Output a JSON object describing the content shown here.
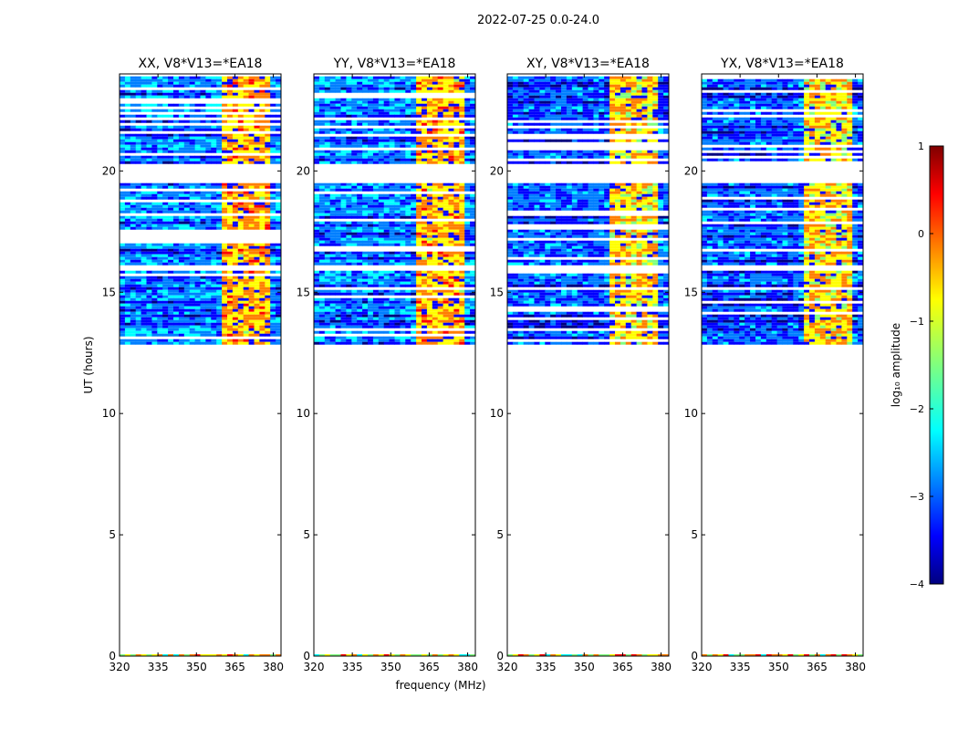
{
  "figure": {
    "suptitle": "2022-07-25 0.0-24.0",
    "ylabel": "UT (hours)",
    "xlabel": "frequency (MHz)"
  },
  "chart_data": {
    "type": "heatmap",
    "x": {
      "label": "frequency (MHz)",
      "range": [
        320,
        383
      ],
      "ticks": [
        320,
        335,
        350,
        365,
        380
      ],
      "tick_labels": [
        "320",
        "335",
        "350",
        "365",
        "380"
      ]
    },
    "y": {
      "label": "UT (hours)",
      "range": [
        0,
        24
      ],
      "ticks": [
        0,
        5,
        10,
        15,
        20
      ],
      "tick_labels": [
        "0",
        "5",
        "10",
        "15",
        "20"
      ]
    },
    "panels": [
      {
        "title": "XX, V8*V13=*EA18",
        "pol": "XX"
      },
      {
        "title": "YY, V8*V13=*EA18",
        "pol": "YY"
      },
      {
        "title": "XY, V8*V13=*EA18",
        "pol": "XY"
      },
      {
        "title": "YX, V8*V13=*EA18",
        "pol": "YX"
      }
    ],
    "data_time_range_hours": [
      12.9,
      23.9
    ],
    "flagged_time_ranges_hours": [
      [
        19.5,
        20.4
      ],
      [
        16.0,
        16.2
      ],
      [
        15.9,
        16.0
      ]
    ],
    "rfi_band_mhz": [
      360,
      379
    ],
    "colorbar": {
      "label": "log₁₀ amplitude",
      "range": [
        -4,
        1
      ],
      "ticks": [
        -4,
        -3,
        -2,
        -1,
        0,
        1
      ],
      "tick_labels": [
        "−4",
        "−3",
        "−2",
        "−1",
        "0",
        "1"
      ],
      "colormap": "jet"
    }
  },
  "colors": {
    "jet": [
      "#00007f",
      "#0000ff",
      "#007fff",
      "#00ffff",
      "#7fff7f",
      "#ffff00",
      "#ff7f00",
      "#ff0000",
      "#7f0000"
    ]
  }
}
